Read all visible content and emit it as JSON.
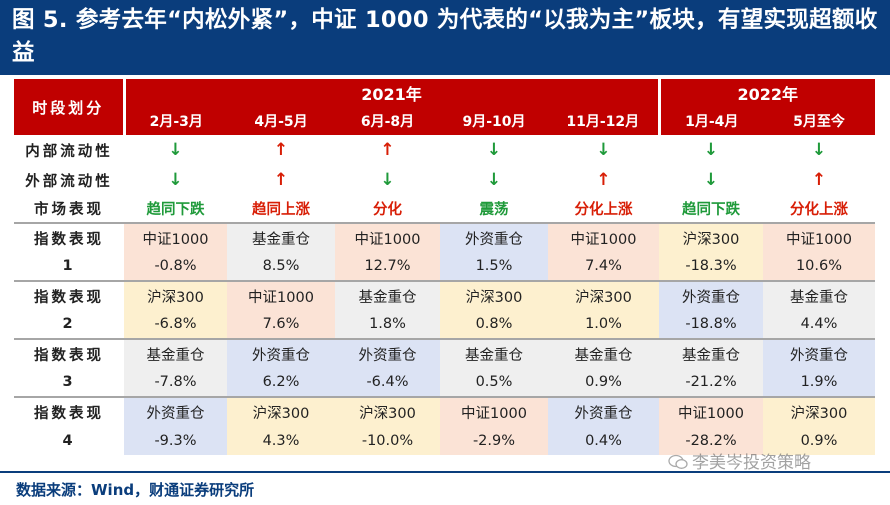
{
  "title": "图 5. 参考去年“内松外紧”，中证 1000 为代表的“以我为主”板块，有望实现超额收益",
  "table": {
    "header_label": "时段划分",
    "years": [
      {
        "label": "2021年"
      },
      {
        "label": "2022年"
      }
    ],
    "periods": [
      "2月-3月",
      "4月-5月",
      "6月-8月",
      "9月-10月",
      "11月-12月",
      "1月-4月",
      "5月至今"
    ],
    "rows": [
      {
        "label": "内部流动性",
        "arrows": [
          "↓",
          "↑",
          "↑",
          "↓",
          "↓",
          "↓",
          "↓"
        ]
      },
      {
        "label": "外部流动性",
        "arrows": [
          "↓",
          "↑",
          "↓",
          "↓",
          "↑",
          "↓",
          "↑"
        ]
      }
    ],
    "market": {
      "label": "市场表现",
      "values": [
        "趋同下跌",
        "趋同上涨",
        "分化",
        "震荡",
        "分化上涨",
        "趋同下跌",
        "分化上涨"
      ]
    },
    "indices": [
      {
        "label_top": "指数表现",
        "label_num": "1",
        "names": [
          "中证1000",
          "基金重仓",
          "中证1000",
          "外资重仓",
          "中证1000",
          "沪深300",
          "中证1000"
        ],
        "values": [
          "-0.8%",
          "8.5%",
          "12.7%",
          "1.5%",
          "7.4%",
          "-18.3%",
          "10.6%"
        ]
      },
      {
        "label_top": "指数表现",
        "label_num": "2",
        "names": [
          "沪深300",
          "中证1000",
          "基金重仓",
          "沪深300",
          "沪深300",
          "外资重仓",
          "基金重仓"
        ],
        "values": [
          "-6.8%",
          "7.6%",
          "1.8%",
          "0.8%",
          "1.0%",
          "-18.8%",
          "4.4%"
        ]
      },
      {
        "label_top": "指数表现",
        "label_num": "3",
        "names": [
          "基金重仓",
          "外资重仓",
          "外资重仓",
          "基金重仓",
          "基金重仓",
          "基金重仓",
          "外资重仓"
        ],
        "values": [
          "-7.8%",
          "6.2%",
          "-6.4%",
          "0.5%",
          "0.9%",
          "-21.2%",
          "1.9%"
        ]
      },
      {
        "label_top": "指数表现",
        "label_num": "4",
        "names": [
          "外资重仓",
          "沪深300",
          "沪深300",
          "中证1000",
          "外资重仓",
          "中证1000",
          "沪深300"
        ],
        "values": [
          "-9.3%",
          "4.3%",
          "-10.0%",
          "-2.9%",
          "0.4%",
          "-28.2%",
          "0.9%"
        ]
      }
    ],
    "index_colors": {
      "中证1000": "#fbe3d6",
      "基金重仓": "#efefef",
      "外资重仓": "#dce3f4",
      "沪深300": "#fdf0cf"
    }
  },
  "source": "数据来源：Wind，财通证券研究所",
  "watermark": "李美岑投资策略"
}
